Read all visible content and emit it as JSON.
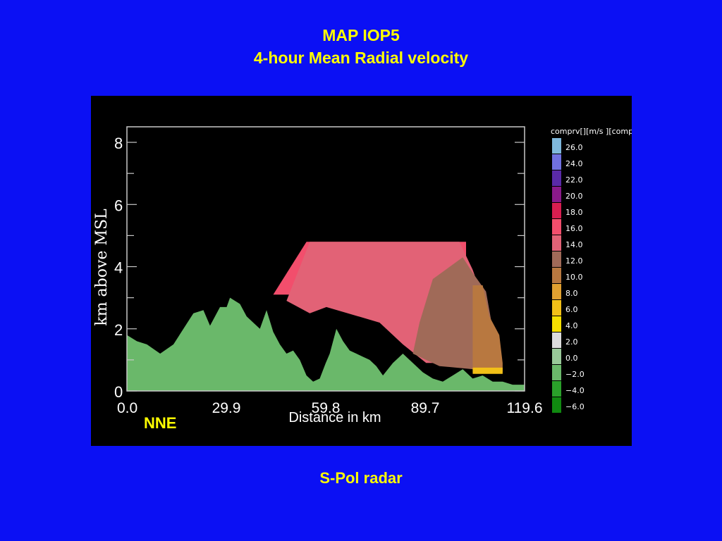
{
  "slide": {
    "title_line1": "MAP IOP5",
    "title_line2": "4-hour Mean Radial velocity",
    "footer": "S-Pol radar",
    "background_color": "#0b10f4",
    "text_color": "#ffff00"
  },
  "chart_data": {
    "type": "heatmap",
    "title": "",
    "direction_label": "NNE",
    "xlabel": "Distance in km",
    "ylabel": "km  above  MSL",
    "xlim": [
      0.0,
      119.6
    ],
    "ylim": [
      0,
      8.5
    ],
    "xticks": [
      0.0,
      29.9,
      59.8,
      89.7,
      119.6
    ],
    "xtick_labels": [
      "0.0",
      "29.9",
      "59.8",
      "89.7",
      "119.6"
    ],
    "yticks": [
      0,
      2,
      4,
      6,
      8
    ],
    "ytick_labels": [
      "0",
      "2",
      "4",
      "6",
      "8"
    ],
    "colorbar": {
      "title": "comprv[][m/s  ][comp",
      "units": "m/s",
      "levels": [
        "26.0",
        "24.0",
        "22.0",
        "20.0",
        "18.0",
        "16.0",
        "14.0",
        "12.0",
        "10.0",
        "8.0",
        "6.0",
        "4.0",
        "2.0",
        "0.0",
        "−2.0",
        "−4.0",
        "−6.0"
      ],
      "colors": [
        "#7fb8dc",
        "#7070e0",
        "#5a2aa8",
        "#8a1a8a",
        "#d81e50",
        "#f24e6c",
        "#e26276",
        "#a06a58",
        "#b87840",
        "#e0a030",
        "#f2c018",
        "#f6e000",
        "#dcdcdc",
        "#98c898",
        "#6ab86a",
        "#2aa02a",
        "#108a10"
      ]
    },
    "terrain": {
      "label_color": "#6ab86a",
      "x": [
        0,
        3,
        6,
        10,
        14,
        17,
        20,
        23,
        25,
        28,
        30,
        31,
        34,
        36,
        38,
        40,
        42,
        44,
        46,
        48,
        50,
        52,
        54,
        56,
        58,
        59.8,
        61,
        63,
        65,
        67,
        69,
        71,
        73,
        75,
        77,
        80,
        83,
        86,
        89,
        92,
        95,
        98,
        101,
        104,
        107,
        110,
        113,
        116,
        119.6
      ],
      "y": [
        1.8,
        1.6,
        1.5,
        1.2,
        1.5,
        2.0,
        2.5,
        2.6,
        2.1,
        2.7,
        2.7,
        3.0,
        2.8,
        2.4,
        2.2,
        2.0,
        2.6,
        1.9,
        1.5,
        1.2,
        1.3,
        1.0,
        0.5,
        0.3,
        0.4,
        0.9,
        1.2,
        2.0,
        1.6,
        1.3,
        1.2,
        1.1,
        1.0,
        0.8,
        0.5,
        0.9,
        1.2,
        0.9,
        0.6,
        0.4,
        0.3,
        0.5,
        0.7,
        0.4,
        0.5,
        0.3,
        0.3,
        0.2,
        0.2
      ]
    },
    "velocity_regions": [
      {
        "value": "16.0",
        "x": [
          44,
          54,
          102,
          102,
          44
        ],
        "y": [
          3.1,
          4.8,
          4.8,
          3.1,
          3.1
        ]
      },
      {
        "value": "14.0",
        "x": [
          48,
          55,
          100,
          104,
          107,
          107,
          103,
          90,
          83,
          76,
          60,
          55,
          48
        ],
        "y": [
          2.9,
          4.8,
          4.8,
          3.9,
          3.0,
          1.5,
          0.9,
          0.9,
          1.5,
          2.2,
          2.7,
          2.5,
          2.9
        ]
      },
      {
        "value": "12.0",
        "x": [
          92,
          101,
          104,
          108,
          110,
          110,
          104,
          94,
          86,
          88,
          92
        ],
        "y": [
          3.6,
          4.3,
          3.8,
          3.2,
          2.0,
          0.9,
          0.7,
          0.8,
          1.2,
          2.2,
          3.6
        ]
      },
      {
        "value": "10.0",
        "x": [
          104,
          107,
          109,
          112,
          113,
          113,
          104,
          104
        ],
        "y": [
          3.4,
          3.4,
          2.4,
          1.8,
          0.9,
          0.6,
          0.6,
          3.4
        ]
      },
      {
        "value": "6.0",
        "x": [
          104,
          113,
          113,
          104
        ],
        "y": [
          0.55,
          0.55,
          0.75,
          0.75
        ]
      }
    ]
  }
}
